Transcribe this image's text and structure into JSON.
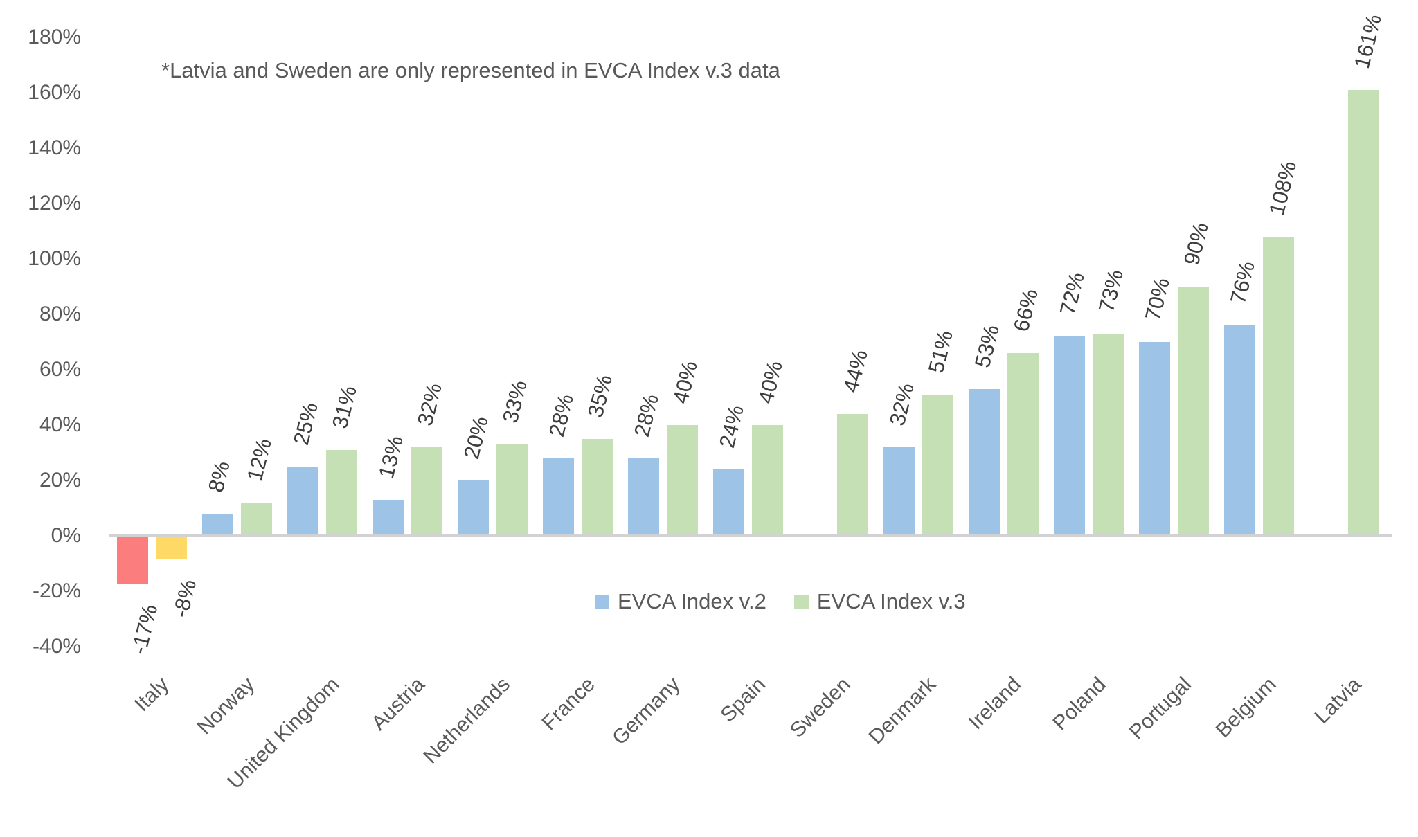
{
  "annotation": "*Latvia and Sweden are only represented in EVCA Index v.3 data",
  "chart_data": {
    "type": "bar",
    "title": "",
    "annotation": "*Latvia and Sweden are only represented in EVCA Index v.3 data",
    "categories": [
      "Italy",
      "Norway",
      "United Kingdom",
      "Austria",
      "Netherlands",
      "France",
      "Germany",
      "Spain",
      "Sweden",
      "Denmark",
      "Ireland",
      "Poland",
      "Portugal",
      "Belgium",
      "Latvia"
    ],
    "series": [
      {
        "name": "EVCA Index v.2",
        "color": "#9DC3E6",
        "negative_color": "#FB7D7D",
        "values": [
          -17,
          8,
          25,
          13,
          20,
          28,
          28,
          24,
          null,
          32,
          53,
          72,
          70,
          76,
          null
        ]
      },
      {
        "name": "EVCA Index v.3",
        "color": "#C5E0B4",
        "negative_color": "#FFD966",
        "values": [
          -8,
          12,
          31,
          32,
          33,
          35,
          40,
          40,
          44,
          51,
          66,
          73,
          90,
          108,
          161
        ]
      }
    ],
    "value_suffix": "%",
    "data_labels": "outside-end-rotated",
    "axis": {
      "y_min": -40,
      "y_max": 180,
      "y_step": 20,
      "tick_suffix": "%"
    },
    "grid": false,
    "legend_position": "inside-center-below-zero",
    "colors": {
      "axis_line": "#D2D2D2",
      "tick_text": "#595959",
      "category_text": "#595959",
      "data_label_text": "#3D3D3D",
      "annotation_text": "#595959",
      "background": "#FFFFFF"
    }
  }
}
